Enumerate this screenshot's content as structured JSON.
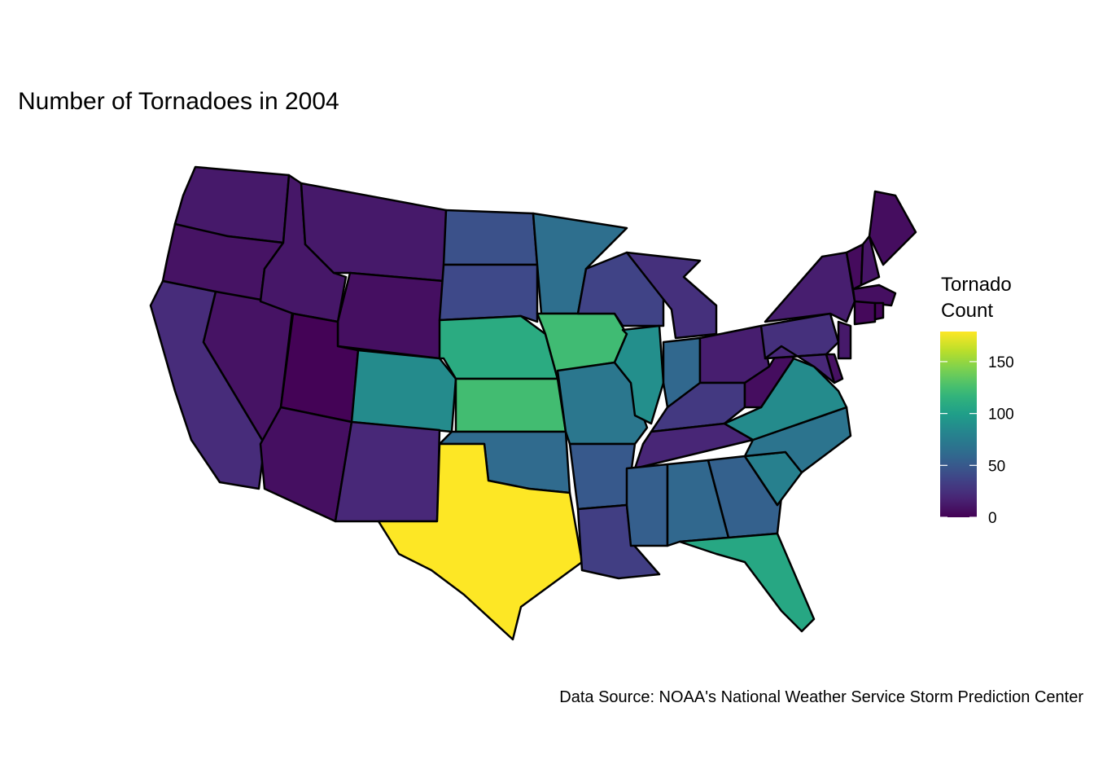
{
  "chart_data": {
    "type": "choropleth",
    "title": "Number of Tornadoes in 2004",
    "caption": "Data Source: NOAA's National Weather Service Storm Prediction Center",
    "legend_title": [
      "Tornado",
      "Count"
    ],
    "colormap": "viridis",
    "clim": [
      0,
      179
    ],
    "cticks": [
      0,
      50,
      100,
      150
    ],
    "values": [
      12,
      9,
      22,
      9,
      11,
      12,
      7,
      1,
      86,
      7,
      20,
      45,
      40,
      110,
      124,
      62,
      179,
      65,
      123,
      71,
      50,
      33,
      36,
      89,
      25,
      60,
      15,
      30,
      19,
      54,
      60,
      55,
      107,
      78,
      69,
      86,
      6,
      25,
      15,
      20,
      8,
      12,
      5,
      10,
      6,
      7,
      4,
      2
    ]
  }
}
